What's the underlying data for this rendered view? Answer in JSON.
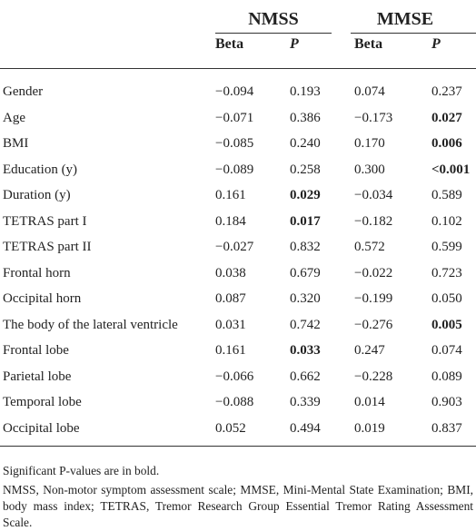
{
  "groups": {
    "nmss": "NMSS",
    "mmse": "MMSE"
  },
  "subheaders": {
    "beta": "Beta",
    "p": "P"
  },
  "rows": [
    {
      "label": "Gender",
      "nmss_beta": "−0.094",
      "nmss_p": "0.193",
      "mmse_beta": "0.074",
      "mmse_p": "0.237",
      "bold": []
    },
    {
      "label": "Age",
      "nmss_beta": "−0.071",
      "nmss_p": "0.386",
      "mmse_beta": "−0.173",
      "mmse_p": "0.027",
      "bold": [
        "mmse_p"
      ]
    },
    {
      "label": "BMI",
      "nmss_beta": "−0.085",
      "nmss_p": "0.240",
      "mmse_beta": "0.170",
      "mmse_p": "0.006",
      "bold": [
        "mmse_p"
      ]
    },
    {
      "label": "Education (y)",
      "nmss_beta": "−0.089",
      "nmss_p": "0.258",
      "mmse_beta": "0.300",
      "mmse_p": "<0.001",
      "bold": [
        "mmse_p"
      ]
    },
    {
      "label": "Duration (y)",
      "nmss_beta": "0.161",
      "nmss_p": "0.029",
      "mmse_beta": "−0.034",
      "mmse_p": "0.589",
      "bold": [
        "nmss_p"
      ]
    },
    {
      "label": "TETRAS part I",
      "nmss_beta": "0.184",
      "nmss_p": "0.017",
      "mmse_beta": "−0.182",
      "mmse_p": "0.102",
      "bold": [
        "nmss_p"
      ]
    },
    {
      "label": "TETRAS part II",
      "nmss_beta": "−0.027",
      "nmss_p": "0.832",
      "mmse_beta": "0.572",
      "mmse_p": "0.599",
      "bold": []
    },
    {
      "label": "Frontal horn",
      "nmss_beta": "0.038",
      "nmss_p": "0.679",
      "mmse_beta": "−0.022",
      "mmse_p": "0.723",
      "bold": []
    },
    {
      "label": "Occipital horn",
      "nmss_beta": "0.087",
      "nmss_p": "0.320",
      "mmse_beta": "−0.199",
      "mmse_p": "0.050",
      "bold": []
    },
    {
      "label": "The body of the lateral ventricle",
      "nmss_beta": "0.031",
      "nmss_p": "0.742",
      "mmse_beta": "−0.276",
      "mmse_p": "0.005",
      "bold": [
        "mmse_p"
      ]
    },
    {
      "label": "Frontal lobe",
      "nmss_beta": "0.161",
      "nmss_p": "0.033",
      "mmse_beta": "0.247",
      "mmse_p": "0.074",
      "bold": [
        "nmss_p"
      ]
    },
    {
      "label": "Parietal lobe",
      "nmss_beta": "−0.066",
      "nmss_p": "0.662",
      "mmse_beta": "−0.228",
      "mmse_p": "0.089",
      "bold": []
    },
    {
      "label": "Temporal lobe",
      "nmss_beta": "−0.088",
      "nmss_p": "0.339",
      "mmse_beta": "0.014",
      "mmse_p": "0.903",
      "bold": []
    },
    {
      "label": "Occipital lobe",
      "nmss_beta": "0.052",
      "nmss_p": "0.494",
      "mmse_beta": "0.019",
      "mmse_p": "0.837",
      "bold": []
    }
  ],
  "footnotes": {
    "significance": "Significant P-values are in bold.",
    "abbreviations": "NMSS, Non-motor symptom assessment scale; MMSE, Mini-Mental State Examination; BMI, body mass index; TETRAS, Tremor Research Group Essential Tremor Rating Assessment Scale."
  }
}
